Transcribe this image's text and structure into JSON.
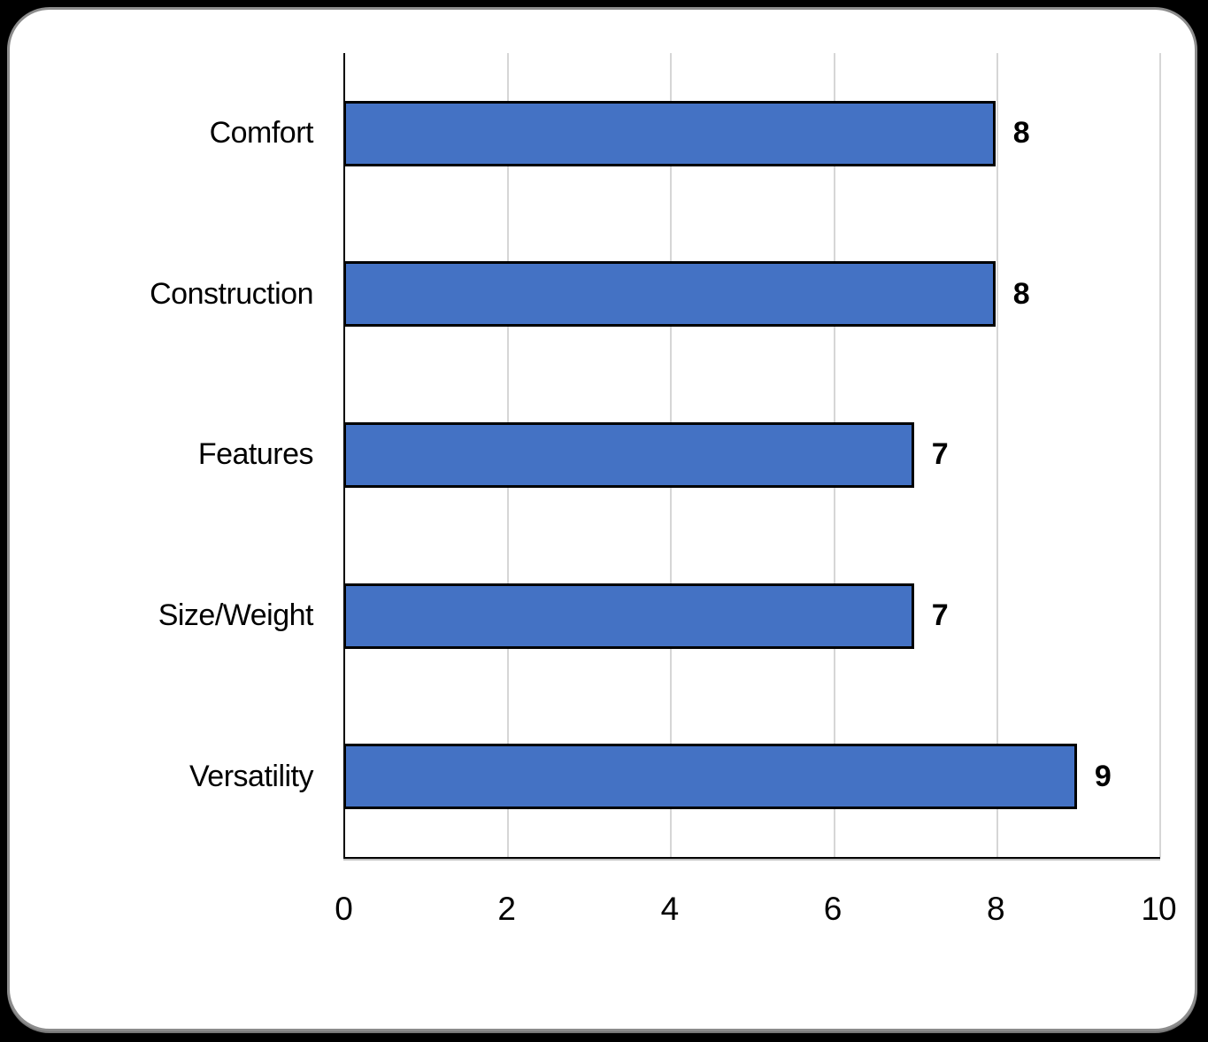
{
  "chart_data": {
    "type": "bar",
    "orientation": "horizontal",
    "title": "",
    "xlabel": "",
    "ylabel": "",
    "categories": [
      "Comfort",
      "Construction",
      "Features",
      "Size/Weight",
      "Versatility"
    ],
    "values": [
      8,
      8,
      7,
      7,
      9
    ],
    "data_labels": [
      "8",
      "8",
      "7",
      "7",
      "9"
    ],
    "xlim": [
      0,
      10
    ],
    "x_ticks": [
      "0",
      "2",
      "4",
      "6",
      "8",
      "10"
    ],
    "grid": "vertical-on",
    "legend": "none",
    "colors": {
      "bar_fill": "#4472C4",
      "bar_border": "#000000",
      "gridline": "#D6D6D6",
      "axis_line": "#000000",
      "plot_background": "#FFFFFF",
      "card_background": "#FFFFFF",
      "card_border": "#8C8C8C",
      "page_background": "#000000"
    }
  }
}
